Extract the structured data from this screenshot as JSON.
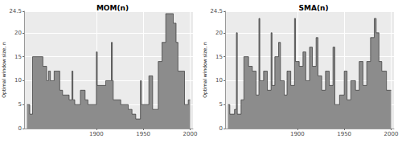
{
  "chart_data": [
    {
      "type": "line",
      "title": "MOM(n)",
      "y_label": "Optimal window size, n",
      "x": [
        1826,
        1829,
        1832,
        1843,
        1847,
        1849,
        1851,
        1855,
        1861,
        1864,
        1871,
        1874,
        1875,
        1877,
        1883,
        1888,
        1891,
        1900,
        1901,
        1910,
        1916,
        1917,
        1918,
        1926,
        1934,
        1938,
        1942,
        1947,
        1948,
        1956,
        1960,
        1966,
        1970,
        1974,
        1982,
        1985,
        1987,
        1994,
        1998,
        2000
      ],
      "values": [
        5,
        3,
        15,
        13,
        10,
        12,
        10,
        12,
        8,
        7,
        6,
        12,
        6,
        5,
        8,
        6,
        5,
        16,
        9,
        10,
        18,
        10,
        6,
        5,
        4,
        3,
        2,
        10,
        5,
        11,
        4,
        14,
        18,
        24,
        22,
        18,
        12,
        5,
        6,
        6
      ],
      "color": "#8c8c8c",
      "line_style": "step",
      "xlim": [
        1823,
        2003
      ],
      "xticks": [
        1900,
        1950,
        2000
      ],
      "ylim": [
        0,
        24.5
      ],
      "yticks": [
        0,
        5,
        10,
        15,
        20
      ],
      "grid": true
    },
    {
      "type": "line",
      "title": "SMA(n)",
      "y_label": "Optimal window size, n",
      "x": [
        1826,
        1828,
        1833,
        1835,
        1836,
        1840,
        1843,
        1848,
        1852,
        1856,
        1859,
        1860,
        1864,
        1868,
        1872,
        1873,
        1876,
        1880,
        1882,
        1886,
        1889,
        1893,
        1897,
        1898,
        1902,
        1906,
        1909,
        1913,
        1916,
        1920,
        1922,
        1926,
        1930,
        1934,
        1938,
        1940,
        1945,
        1950,
        1953,
        1957,
        1962,
        1966,
        1970,
        1974,
        1978,
        1982,
        1984,
        1987,
        1990,
        1995,
        2000
      ],
      "values": [
        5,
        3,
        4,
        20,
        3,
        6,
        15,
        13,
        12,
        7,
        23,
        10,
        12,
        8,
        20,
        9,
        15,
        18,
        10,
        7,
        12,
        9,
        23,
        14,
        13,
        16,
        10,
        17,
        13,
        19,
        11,
        8,
        12,
        9,
        17,
        5,
        7,
        12,
        6,
        10,
        8,
        14,
        9,
        14,
        19,
        23,
        20,
        14,
        12,
        8,
        8
      ],
      "color": "#8c8c8c",
      "line_style": "step",
      "xlim": [
        1823,
        2003
      ],
      "xticks": [
        1900,
        1950,
        2000
      ],
      "ylim": [
        0,
        24.5
      ],
      "yticks": [
        0,
        5,
        10,
        15,
        20
      ],
      "grid": true
    }
  ]
}
